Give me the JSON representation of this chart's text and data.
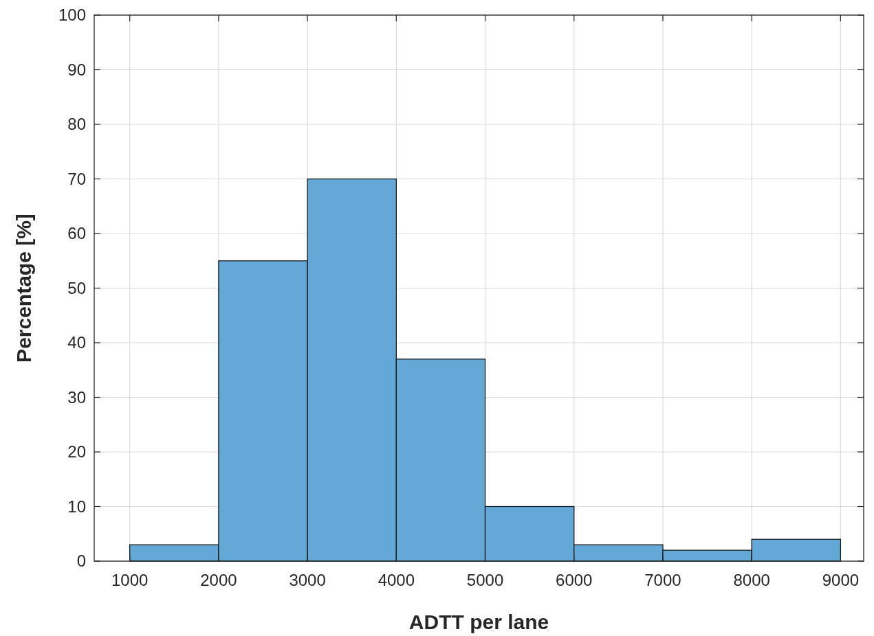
{
  "chart_data": {
    "type": "histogram",
    "xlabel": "ADTT per lane",
    "ylabel": "Percentage [%]",
    "bins": [
      1000,
      2000,
      3000,
      4000,
      5000,
      6000,
      7000,
      8000,
      9000
    ],
    "values": [
      3,
      55,
      70,
      37,
      10,
      3,
      2,
      4
    ],
    "color": "#63a8d6",
    "xlim": [
      600,
      9260
    ],
    "xticks": [
      1000,
      2000,
      3000,
      4000,
      5000,
      6000,
      7000,
      8000,
      9000
    ],
    "ylim": [
      0,
      100
    ],
    "yticks": [
      0,
      10,
      20,
      30,
      40,
      50,
      60,
      70,
      80,
      90,
      100
    ],
    "grid": true
  }
}
